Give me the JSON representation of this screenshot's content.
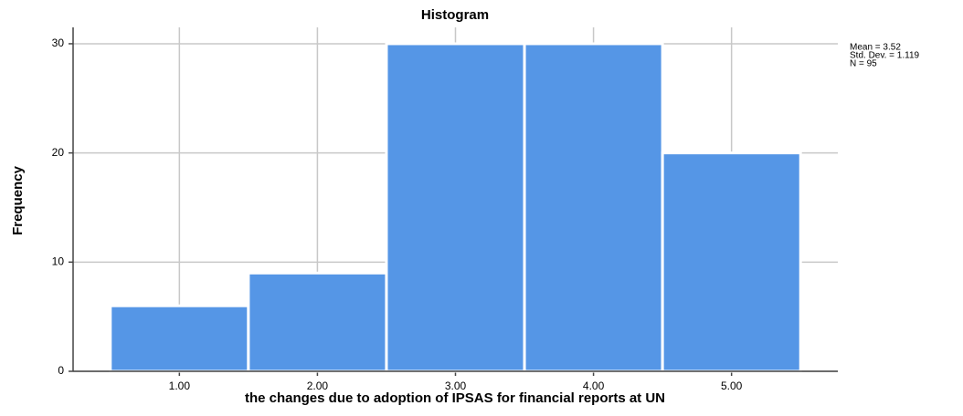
{
  "chart_data": {
    "type": "histogram",
    "title": "Histogram",
    "xlabel": "the changes due to adoption of IPSAS for financial reports at UN",
    "ylabel": "Frequency",
    "bins": [
      0.5,
      1.5,
      2.5,
      3.5,
      4.5,
      5.5
    ],
    "values": [
      6,
      9,
      30,
      30,
      20
    ],
    "color": "#5596e6",
    "xlim": [
      0.23,
      5.77
    ],
    "ylim": [
      0,
      31.5
    ],
    "xticks": [
      {
        "value": 1,
        "label": "1.00"
      },
      {
        "value": 2,
        "label": "2.00"
      },
      {
        "value": 3,
        "label": "3.00"
      },
      {
        "value": 4,
        "label": "4.00"
      },
      {
        "value": 5,
        "label": "5.00"
      }
    ],
    "yticks": [
      0,
      10,
      20,
      30
    ],
    "grid": true,
    "annotations": [
      "Mean = 3.52",
      "Std. Dev. = 1.119",
      "N = 95"
    ]
  }
}
